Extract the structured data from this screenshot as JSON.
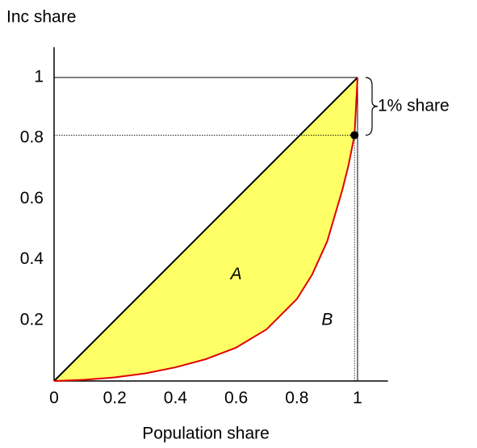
{
  "chart_data": {
    "type": "lorenz",
    "ylabel": "Inc share",
    "xlabel": "Population share",
    "xlim": [
      0,
      1.1
    ],
    "ylim": [
      0,
      1.1
    ],
    "xticks": [
      0,
      0.2,
      0.4,
      0.6,
      0.8,
      1
    ],
    "yticks": [
      0.2,
      0.4,
      0.6,
      0.8,
      1
    ],
    "equality_line": {
      "x": [
        0,
        1
      ],
      "y": [
        0,
        1
      ],
      "color": "#000000"
    },
    "curve": {
      "x": [
        0,
        0.1,
        0.2,
        0.3,
        0.4,
        0.5,
        0.6,
        0.7,
        0.8,
        0.85,
        0.9,
        0.95,
        0.97,
        0.99,
        1
      ],
      "y": [
        0,
        0.004,
        0.012,
        0.025,
        0.045,
        0.072,
        0.11,
        0.17,
        0.27,
        0.35,
        0.46,
        0.63,
        0.71,
        0.81,
        1
      ],
      "color": "#e00000"
    },
    "fill_color": "#ffff66",
    "marker": {
      "x": 0.99,
      "y": 0.81
    },
    "annotations": {
      "area_a": "A",
      "area_b": "B",
      "brace": "1% share"
    }
  }
}
